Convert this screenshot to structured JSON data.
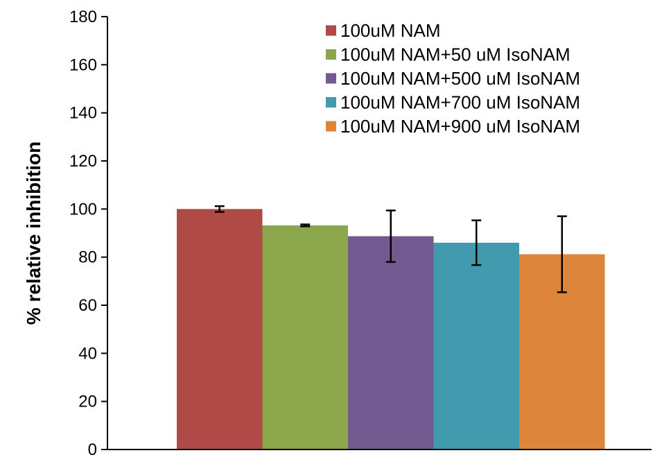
{
  "chart_data": {
    "type": "bar",
    "title": "",
    "xlabel": "",
    "ylabel": "% relative inhibition",
    "ylim": [
      0,
      180
    ],
    "yticks": [
      0,
      20,
      40,
      60,
      80,
      100,
      120,
      140,
      160,
      180
    ],
    "grid": false,
    "legend_position": "top-right",
    "series": [
      {
        "name": "100uM NAM",
        "value": 100,
        "error": 1.2,
        "color": "#b04a46"
      },
      {
        "name": "100uM NAM+50 uM IsoNAM",
        "value": 93.2,
        "error": 0.4,
        "color": "#8ba64b"
      },
      {
        "name": "100uM NAM+500 uM IsoNAM",
        "value": 88.7,
        "error": 10.7,
        "color": "#725a91"
      },
      {
        "name": "100uM NAM+700 uM IsoNAM",
        "value": 86,
        "error": 9.3,
        "color": "#429aaf"
      },
      {
        "name": "100uM NAM+900 uM IsoNAM",
        "value": 81.2,
        "error": 15.8,
        "color": "#dd853a"
      }
    ]
  }
}
